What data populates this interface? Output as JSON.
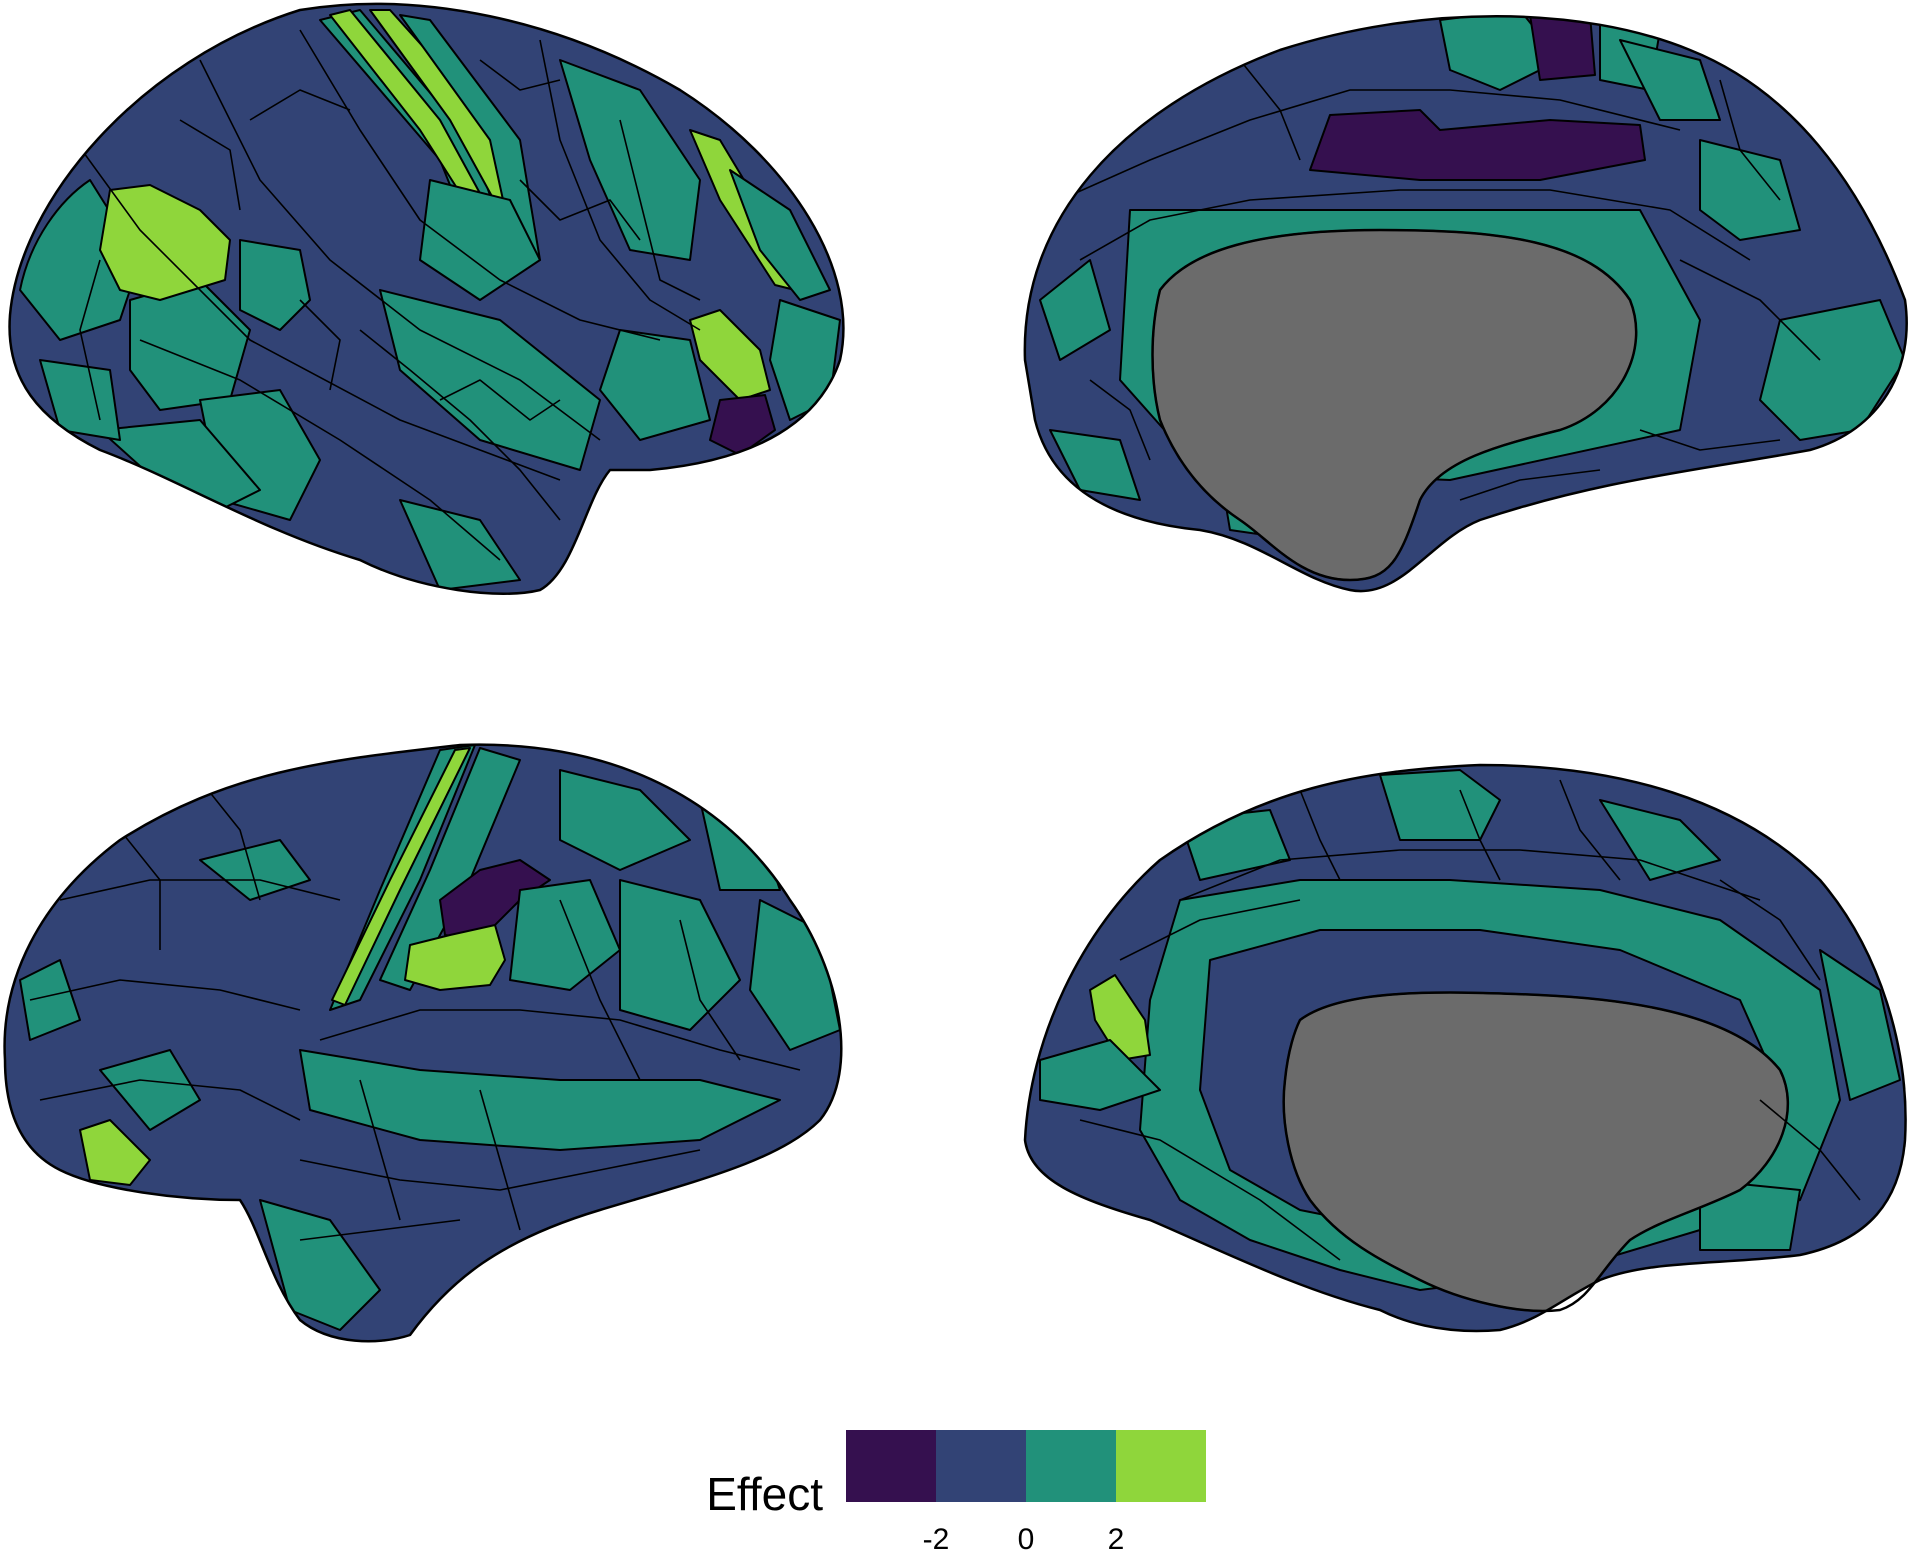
{
  "legend": {
    "title": "Effect",
    "colors": [
      "#35104f",
      "#324375",
      "#21917a",
      "#8fd63b"
    ],
    "ticks": [
      "-2",
      "0",
      "2"
    ]
  },
  "colors": {
    "very_negative": "#35104f",
    "slightly_negative": "#324375",
    "slightly_positive": "#21917a",
    "very_positive": "#8fd63b",
    "medial_wall": "#6b6b6b",
    "outline": "#000000"
  },
  "views": [
    {
      "hemisphere": "left",
      "view": "lateral"
    },
    {
      "hemisphere": "left",
      "view": "medial"
    },
    {
      "hemisphere": "right",
      "view": "lateral"
    },
    {
      "hemisphere": "right",
      "view": "medial"
    }
  ]
}
